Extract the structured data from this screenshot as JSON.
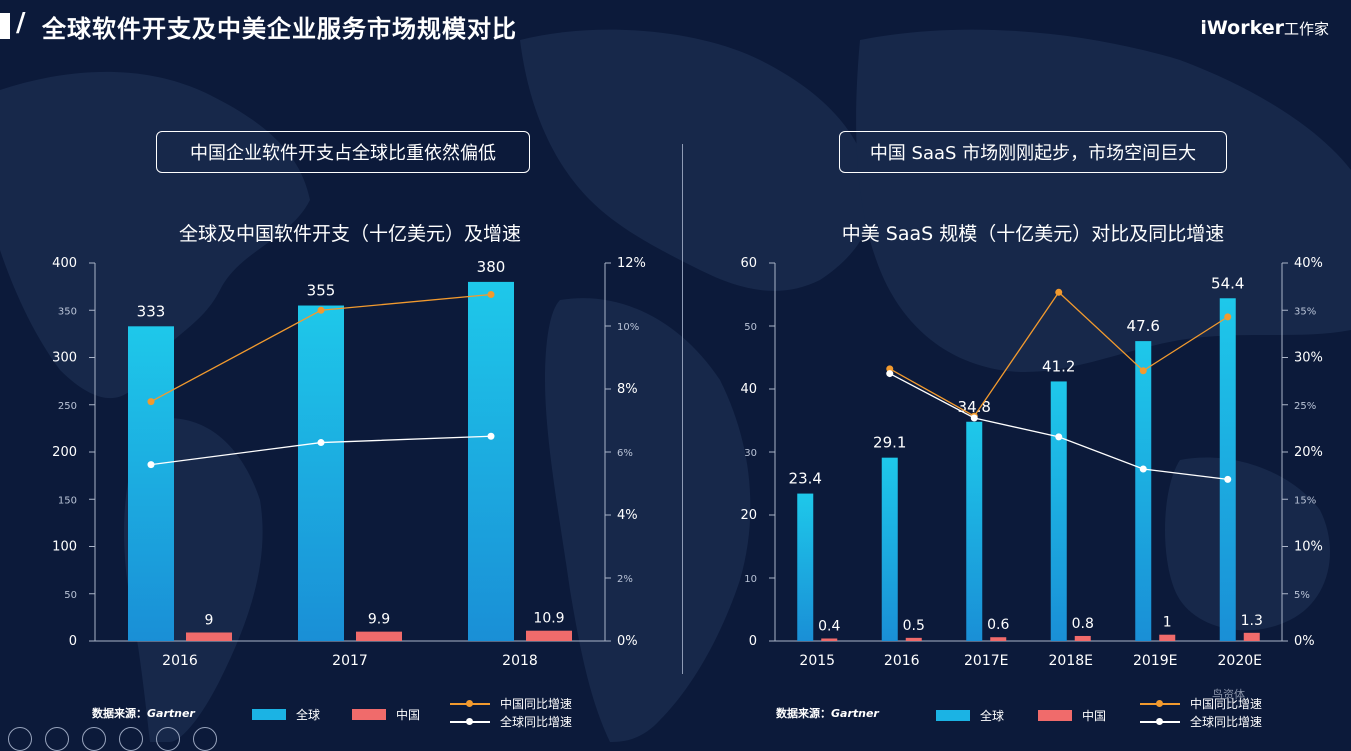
{
  "header": {
    "title": "全球软件开支及中美企业服务市场规模对比",
    "brand": "iWorker",
    "brand_suffix": "工作家"
  },
  "left": {
    "headline": "中国企业软件开支占全球比重依然偏低",
    "source_label": "数据来源：",
    "source_name": "Gartner",
    "legend": {
      "global": "全球",
      "china": "中国",
      "china_growth": "中国同比增速",
      "global_growth": "全球同比增速"
    }
  },
  "right": {
    "headline": "中国 SaaS 市场刚刚起步，市场空间巨大",
    "source_label": "数据来源：",
    "source_name": "Gartner",
    "legend": {
      "global": "全球",
      "china": "中国",
      "china_growth": "中国同比增速",
      "global_growth": "全球同比增速"
    }
  },
  "watermark": "鸟资体",
  "colors": {
    "background": "#0c1a3a",
    "bar_global_top": "#1ec8ea",
    "bar_global_bottom": "#1a8fd6",
    "bar_china": "#f06b6b",
    "line_china": "#f29a2e",
    "line_global": "#ffffff"
  },
  "chart_data": [
    {
      "type": "bar",
      "title": "全球及中国软件开支（十亿美元）及增速",
      "categories": [
        "2016",
        "2017",
        "2018"
      ],
      "series": [
        {
          "name": "全球",
          "values": [
            333,
            355,
            380
          ],
          "labels": [
            "333",
            "355",
            "380"
          ]
        },
        {
          "name": "中国",
          "values": [
            9,
            9.9,
            10.9
          ],
          "labels": [
            "9",
            "9.9",
            "10.9"
          ]
        }
      ],
      "lines": [
        {
          "name": "中国同比增速",
          "values": [
            7.6,
            10.5,
            11.0
          ]
        },
        {
          "name": "全球同比增速",
          "values": [
            5.6,
            6.3,
            6.5
          ]
        }
      ],
      "ylim": [
        0,
        400
      ],
      "y_ticks": [
        "0",
        "50",
        "100",
        "150",
        "200",
        "250",
        "300",
        "350",
        "400"
      ],
      "y2lim": [
        0,
        12
      ],
      "y2_ticks": [
        "0%",
        "2%",
        "4%",
        "6%",
        "8%",
        "10%",
        "12%"
      ],
      "legend_position": "bottom"
    },
    {
      "type": "bar",
      "title": "中美 SaaS 规模（十亿美元）对比及同比增速",
      "categories": [
        "2015",
        "2016",
        "2017E",
        "2018E",
        "2019E",
        "2020E"
      ],
      "series": [
        {
          "name": "全球",
          "values": [
            23.4,
            29.1,
            34.8,
            41.2,
            47.6,
            54.4
          ],
          "labels": [
            "23.4",
            "29.1",
            "34.8",
            "41.2",
            "47.6",
            "54.4"
          ]
        },
        {
          "name": "中国",
          "values": [
            0.4,
            0.5,
            0.6,
            0.8,
            1.0,
            1.3
          ],
          "labels": [
            "0.4",
            "0.5",
            "0.6",
            "0.8",
            "1",
            "1.3"
          ]
        }
      ],
      "lines": [
        {
          "name": "中国同比增速",
          "values": [
            null,
            28.8,
            23.8,
            36.9,
            28.6,
            34.3
          ]
        },
        {
          "name": "全球同比增速",
          "values": [
            null,
            28.3,
            23.6,
            21.6,
            18.2,
            17.1
          ]
        }
      ],
      "ylim": [
        0,
        60
      ],
      "y_ticks": [
        "0",
        "10",
        "20",
        "30",
        "40",
        "50",
        "60"
      ],
      "y2lim": [
        0,
        40
      ],
      "y2_ticks": [
        "0%",
        "5%",
        "10%",
        "15%",
        "20%",
        "25%",
        "30%",
        "35%",
        "40%"
      ],
      "legend_position": "bottom"
    }
  ]
}
